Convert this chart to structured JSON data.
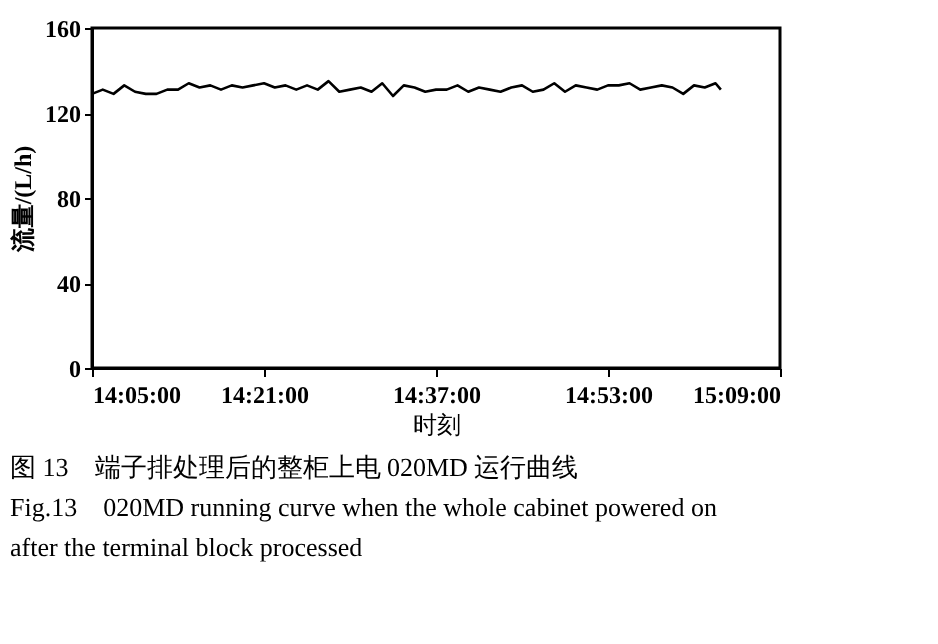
{
  "chart_data": {
    "type": "line",
    "xlabel": "时刻",
    "ylabel": "流量/(L/h)",
    "x": [
      14.0833,
      14.1,
      14.1167,
      14.1333,
      14.15,
      14.1667,
      14.1833,
      14.2,
      14.2167,
      14.2333,
      14.25,
      14.2667,
      14.2833,
      14.3,
      14.3167,
      14.3333,
      14.35,
      14.3667,
      14.3833,
      14.4,
      14.4167,
      14.4333,
      14.45,
      14.4667,
      14.4833,
      14.5,
      14.5167,
      14.5333,
      14.55,
      14.5667,
      14.5833,
      14.6,
      14.6167,
      14.6333,
      14.65,
      14.6667,
      14.6833,
      14.7,
      14.7167,
      14.7333,
      14.75,
      14.7667,
      14.7833,
      14.8,
      14.8167,
      14.8333,
      14.85,
      14.8667,
      14.8833,
      14.9,
      14.9167,
      14.9333,
      14.95,
      14.9667,
      14.9833,
      15.0,
      15.0167,
      15.0333,
      15.05,
      15.0583
    ],
    "series": [
      {
        "color": "#000000",
        "values": [
          129,
          131,
          129,
          133,
          130,
          129,
          129,
          131,
          131,
          134,
          132,
          133,
          131,
          133,
          132,
          133,
          134,
          132,
          133,
          131,
          133,
          131,
          135,
          130,
          131,
          132,
          130,
          134,
          128,
          133,
          132,
          130,
          131,
          131,
          133,
          130,
          132,
          131,
          130,
          132,
          133,
          130,
          131,
          134,
          130,
          133,
          132,
          131,
          133,
          133,
          134,
          131,
          132,
          133,
          132,
          129,
          133,
          132,
          134,
          131
        ]
      }
    ],
    "xlim": [
      14.0833,
      15.15
    ],
    "xticks": [
      {
        "value": 14.0833,
        "label": "14:05:00"
      },
      {
        "value": 14.35,
        "label": "14:21:00"
      },
      {
        "value": 14.6167,
        "label": "14:37:00"
      },
      {
        "value": 14.8833,
        "label": "14:53:00"
      },
      {
        "value": 15.15,
        "label": "15:09:00"
      }
    ],
    "ylim": [
      0,
      160
    ],
    "yticks": [
      0,
      40,
      80,
      120,
      160
    ],
    "grid": false,
    "marker": "none",
    "line_style": "solid",
    "annotations": [
      "图 13　端子排处理后的整柜上电 020MD 运行曲线",
      "Fig.13　020MD running curve when the whole cabinet powered on after the terminal block processed"
    ]
  }
}
